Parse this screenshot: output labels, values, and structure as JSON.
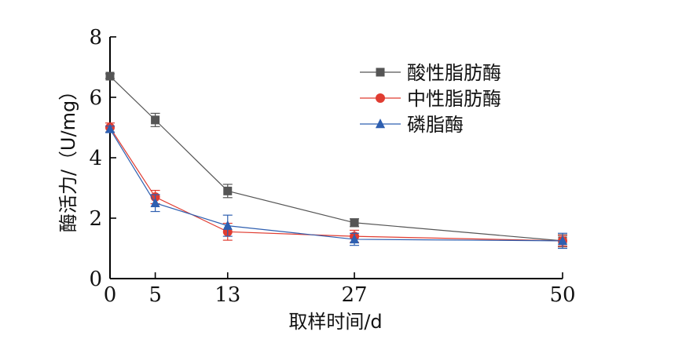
{
  "chart_data": {
    "type": "line",
    "title": "",
    "xlabel": "取样时间/d",
    "ylabel": "酶活力/（U/mg）",
    "x": [
      0,
      5,
      13,
      27,
      50
    ],
    "xlim": [
      0,
      50
    ],
    "ylim": [
      0,
      8
    ],
    "x_ticks": [
      "0",
      "5",
      "13",
      "27",
      "50"
    ],
    "y_ticks": [
      "0",
      "2",
      "4",
      "6",
      "8"
    ],
    "grid": false,
    "legend_position": "top-right",
    "series": [
      {
        "name": "酸性脂肪酶",
        "marker": "square",
        "color": "#555555",
        "values": [
          6.7,
          5.25,
          2.9,
          1.85,
          1.25
        ],
        "errors": [
          0.08,
          0.22,
          0.22,
          0.13,
          0.2
        ]
      },
      {
        "name": "中性脂肪酶",
        "marker": "circle",
        "color": "#e03c31",
        "values": [
          5.0,
          2.7,
          1.55,
          1.4,
          1.25
        ],
        "errors": [
          0.15,
          0.22,
          0.28,
          0.2,
          0.18
        ]
      },
      {
        "name": "磷脂酶",
        "marker": "triangle",
        "color": "#2e5fb0",
        "values": [
          4.95,
          2.5,
          1.75,
          1.3,
          1.25
        ],
        "errors": [
          0.1,
          0.28,
          0.35,
          0.2,
          0.25
        ]
      }
    ]
  }
}
